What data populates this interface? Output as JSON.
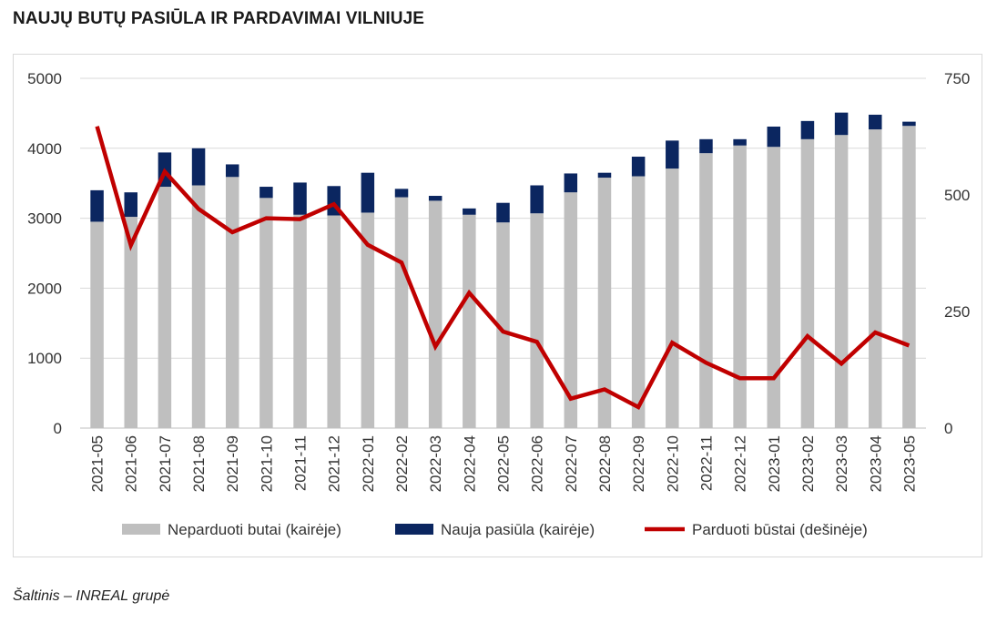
{
  "title": "NAUJŲ BUTŲ PASIŪLA IR PARDAVIMAI VILNIUJE",
  "source": "Šaltinis – INREAL grupė",
  "colors": {
    "unsold": "#bfbfbf",
    "new_supply": "#0b2660",
    "sold": "#c00000",
    "grid": "#d9d9d9"
  },
  "chart_data": {
    "type": "bar",
    "stacked": true,
    "categories": [
      "2021-05",
      "2021-06",
      "2021-07",
      "2021-08",
      "2021-09",
      "2021-10",
      "2021-11",
      "2021-12",
      "2022-01",
      "2022-02",
      "2022-03",
      "2022-04",
      "2022-05",
      "2022-06",
      "2022-07",
      "2022-08",
      "2022-09",
      "2022-10",
      "2022-11",
      "2022-12",
      "2023-01",
      "2023-02",
      "2023-03",
      "2023-04",
      "2023-05"
    ],
    "series": [
      {
        "name": "Neparduoti butai (kairėje)",
        "axis": "left",
        "kind": "bar",
        "values": [
          2950,
          3020,
          3450,
          3470,
          3590,
          3290,
          3050,
          3040,
          3080,
          3300,
          3250,
          3050,
          2940,
          3070,
          3370,
          3580,
          3600,
          3710,
          3930,
          4040,
          4020,
          4130,
          4190,
          4270,
          4320
        ]
      },
      {
        "name": "Nauja pasiūla (kairėje)",
        "axis": "left",
        "kind": "bar",
        "values": [
          450,
          350,
          490,
          530,
          180,
          160,
          460,
          420,
          570,
          120,
          70,
          90,
          280,
          400,
          270,
          70,
          280,
          400,
          200,
          90,
          290,
          260,
          320,
          210,
          60
        ]
      },
      {
        "name": "Parduoti būstai (dešinėje)",
        "axis": "right",
        "kind": "line",
        "values": [
          647,
          392,
          550,
          470,
          420,
          450,
          448,
          480,
          393,
          355,
          175,
          290,
          207,
          185,
          63,
          83,
          45,
          183,
          140,
          107,
          107,
          197,
          138,
          205,
          177
        ]
      }
    ],
    "left_axis": {
      "min": 0,
      "max": 5000,
      "ticks": [
        0,
        1000,
        2000,
        3000,
        4000,
        5000
      ]
    },
    "right_axis": {
      "min": 0,
      "max": 750,
      "ticks": [
        0,
        250,
        500,
        750
      ]
    },
    "grid": true,
    "legend_position": "bottom"
  }
}
